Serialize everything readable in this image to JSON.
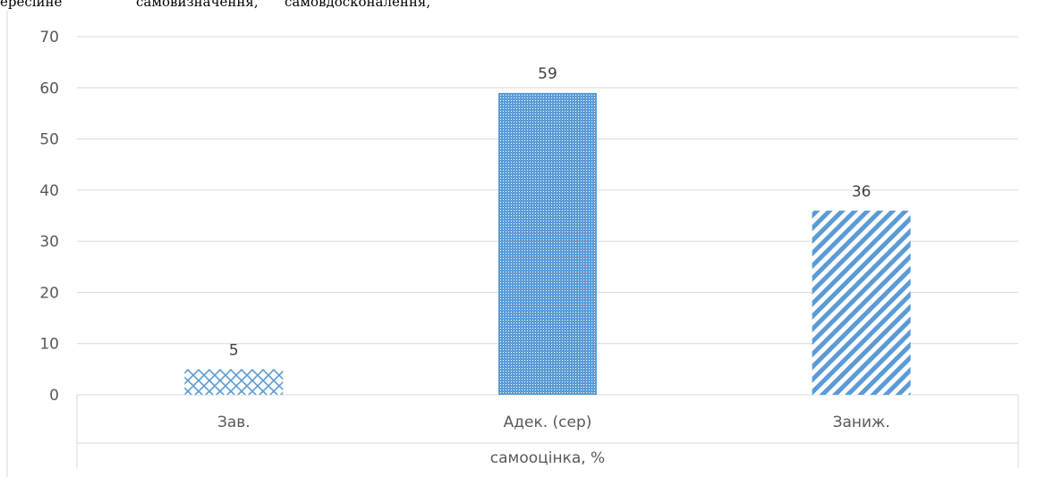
{
  "page_text": {
    "words": [
      "ересійне",
      "самовизначення,",
      "самовдосконалення,"
    ]
  },
  "colors": {
    "bar": "#5b9bd5",
    "grid": "#d9d9d9",
    "axis_text": "#595959"
  },
  "chart_data": {
    "type": "bar",
    "title": "",
    "categories": [
      "Зав.",
      "Адек. (сер)",
      "Заниж."
    ],
    "values": [
      5,
      59,
      36
    ],
    "data_labels": [
      "5",
      "59",
      "36"
    ],
    "xlabel": "самооцінка, %",
    "ylabel": "",
    "ylim": [
      0,
      70
    ],
    "yticks": [
      0,
      10,
      20,
      30,
      40,
      50,
      60,
      70
    ],
    "patterns": [
      "crosshatch",
      "dots",
      "diagonal-stripes"
    ],
    "grid": true,
    "legend": "none"
  }
}
